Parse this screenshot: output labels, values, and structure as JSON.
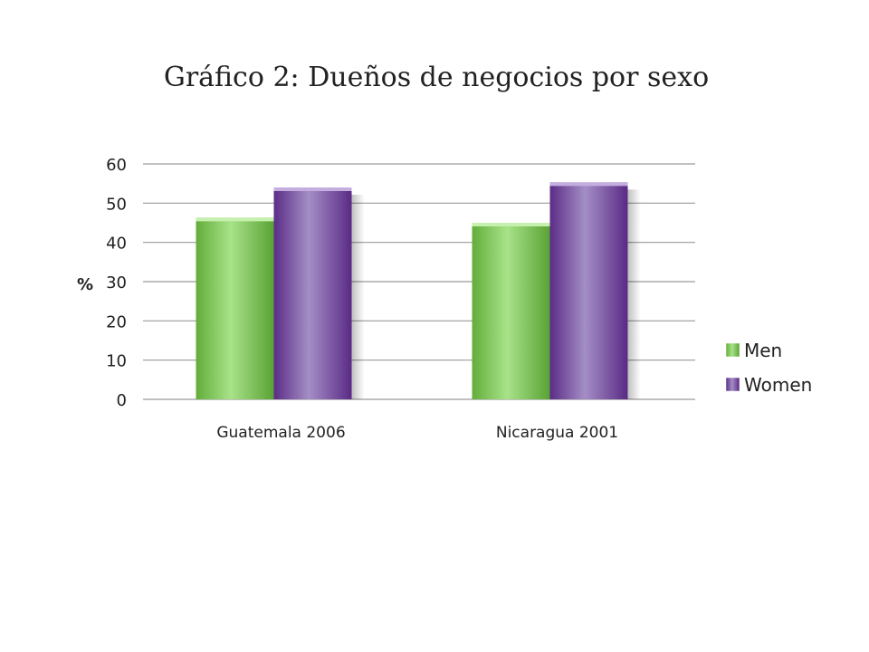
{
  "chart_data": {
    "type": "bar",
    "title": "Gráfico 2: Dueños de negocios por sexo",
    "categories": [
      "Guatemala 2006",
      "Nicaragua 2001"
    ],
    "series": [
      {
        "name": "Men",
        "values": [
          46.3,
          45.0
        ],
        "color": "#8fd36a"
      },
      {
        "name": "Women",
        "values": [
          54.0,
          55.3
        ],
        "color": "#8e62b3"
      }
    ],
    "xlabel": "",
    "ylabel": "%",
    "ylim": [
      0,
      60
    ],
    "yticks": [
      0,
      10,
      20,
      30,
      40,
      50,
      60
    ],
    "grid": true,
    "legend_position": "right"
  }
}
